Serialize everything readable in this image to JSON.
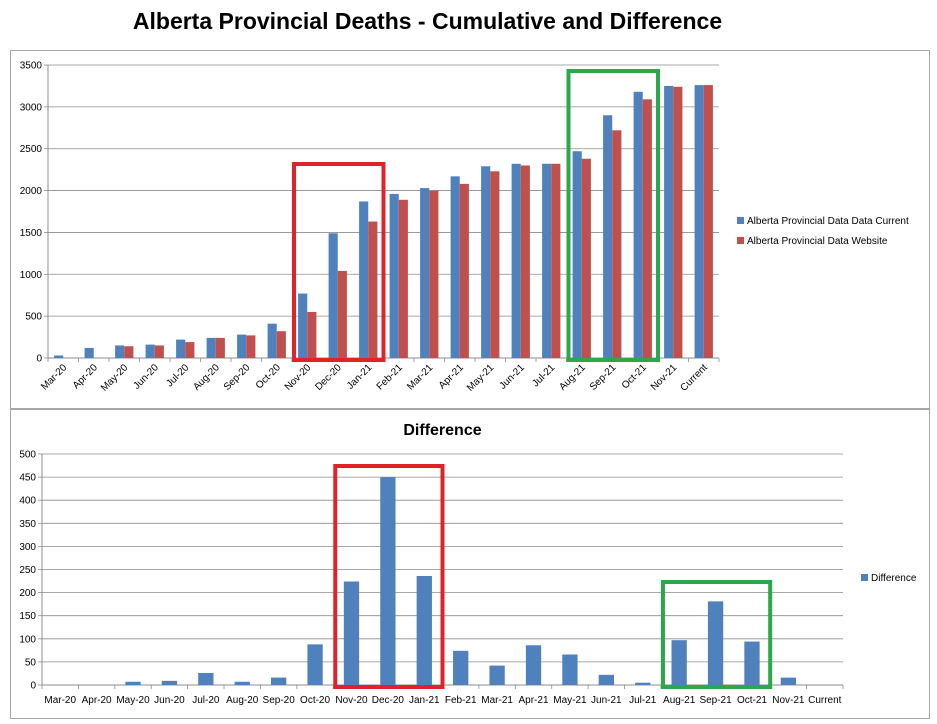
{
  "title": "Alberta Provincial Deaths - Cumulative and Difference",
  "colors": {
    "series_current": "#4f81bd",
    "series_website": "#c0504d",
    "highlight_red": "#e0232b",
    "highlight_green": "#2ba84a"
  },
  "chart_data": [
    {
      "type": "bar",
      "title": "",
      "categories": [
        "Mar-20",
        "Apr-20",
        "May-20",
        "Jun-20",
        "Jul-20",
        "Aug-20",
        "Sep-20",
        "Oct-20",
        "Nov-20",
        "Dec-20",
        "Jan-21",
        "Feb-21",
        "Mar-21",
        "Apr-21",
        "May-21",
        "Jun-21",
        "Jul-21",
        "Aug-21",
        "Sep-21",
        "Oct-21",
        "Nov-21",
        "Current"
      ],
      "series": [
        {
          "name": "Alberta Provincial Data Data  Current",
          "values": [
            30,
            120,
            150,
            160,
            220,
            240,
            280,
            410,
            770,
            1490,
            1870,
            1960,
            2030,
            2170,
            2290,
            2320,
            2320,
            2470,
            2900,
            3180,
            3250,
            3260
          ]
        },
        {
          "name": "Alberta Provincial Data Website",
          "values": [
            0,
            0,
            140,
            150,
            190,
            240,
            270,
            320,
            550,
            1040,
            1630,
            1890,
            2000,
            2080,
            2230,
            2300,
            2320,
            2380,
            2720,
            3090,
            3240,
            3260
          ]
        }
      ],
      "ylim": [
        0,
        3500
      ],
      "yticks": [
        0,
        500,
        1000,
        1500,
        2000,
        2500,
        3000,
        3500
      ],
      "grid": true,
      "legend": "right",
      "highlights": [
        {
          "color": "red",
          "from": "Nov-20",
          "to": "Jan-21"
        },
        {
          "color": "green",
          "from": "Aug-21",
          "to": "Oct-21"
        }
      ]
    },
    {
      "type": "bar",
      "title": "Difference",
      "categories": [
        "Mar-20",
        "Apr-20",
        "May-20",
        "Jun-20",
        "Jul-20",
        "Aug-20",
        "Sep-20",
        "Oct-20",
        "Nov-20",
        "Dec-20",
        "Jan-21",
        "Feb-21",
        "Mar-21",
        "Apr-21",
        "May-21",
        "Jun-21",
        "Jul-21",
        "Aug-21",
        "Sep-21",
        "Oct-21",
        "Nov-21",
        "Current"
      ],
      "series": [
        {
          "name": "Difference",
          "values": [
            0,
            0,
            7,
            9,
            26,
            7,
            16,
            88,
            224,
            450,
            236,
            74,
            42,
            86,
            66,
            22,
            5,
            97,
            181,
            94,
            16,
            0
          ]
        }
      ],
      "ylim": [
        0,
        500
      ],
      "yticks": [
        0,
        50,
        100,
        150,
        200,
        250,
        300,
        350,
        400,
        450,
        500
      ],
      "grid": true,
      "legend": "right",
      "highlights": [
        {
          "color": "red",
          "from": "Nov-20",
          "to": "Jan-21"
        },
        {
          "color": "green",
          "from": "Aug-21",
          "to": "Oct-21"
        }
      ]
    }
  ]
}
